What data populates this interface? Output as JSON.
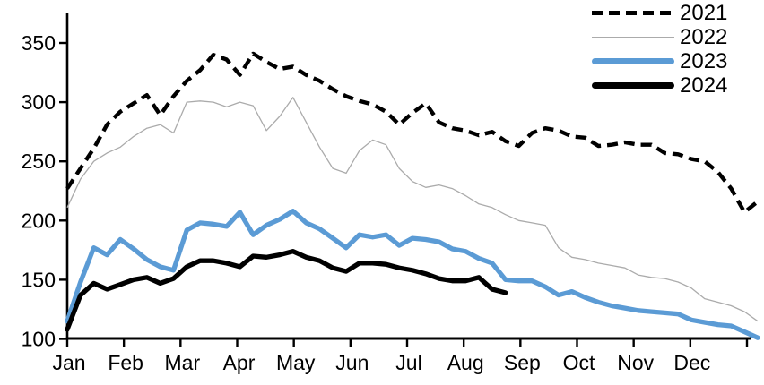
{
  "chart_data": {
    "type": "line",
    "title": "",
    "frequency": "weekly",
    "x_axis": {
      "month_labels": [
        "Jan",
        "Feb",
        "Mar",
        "Apr",
        "May",
        "Jun",
        "Jul",
        "Aug",
        "Sep",
        "Oct",
        "Nov",
        "Dec"
      ],
      "points_per_year": 53
    },
    "y_axis": {
      "min": 100,
      "max": 350,
      "ticks": [
        100,
        150,
        200,
        250,
        300,
        350
      ]
    },
    "legend": {
      "position": "top-right"
    },
    "series": [
      {
        "name": "2021",
        "color": "#000000",
        "line_style": "dashed",
        "values": [
          227,
          244,
          261,
          281,
          292,
          299,
          306,
          289,
          305,
          318,
          327,
          340,
          336,
          323,
          341,
          334,
          328,
          330,
          323,
          318,
          311,
          305,
          301,
          298,
          292,
          281,
          291,
          299,
          283,
          278,
          276,
          272,
          275,
          267,
          263,
          274,
          278,
          276,
          271,
          270,
          263,
          264,
          266,
          264,
          264,
          257,
          256,
          252,
          250,
          241,
          227,
          207,
          216
        ]
      },
      {
        "name": "2022",
        "color": "#ABABAB",
        "line_style": "thin",
        "values": [
          211,
          235,
          250,
          257,
          262,
          271,
          278,
          281,
          274,
          300,
          301,
          300,
          296,
          300,
          297,
          276,
          288,
          304,
          283,
          262,
          244,
          240,
          259,
          268,
          264,
          244,
          233,
          228,
          230,
          227,
          221,
          214,
          211,
          205,
          200,
          198,
          196,
          177,
          169,
          167,
          164,
          162,
          160,
          154,
          152,
          151,
          148,
          143,
          134,
          131,
          128,
          123,
          115
        ]
      },
      {
        "name": "2023",
        "color": "#5B9BD5",
        "line_style": "thick",
        "values": [
          115,
          148,
          177,
          171,
          184,
          176,
          167,
          161,
          158,
          192,
          198,
          197,
          195,
          207,
          188,
          196,
          201,
          208,
          198,
          193,
          185,
          177,
          188,
          186,
          188,
          179,
          185,
          184,
          182,
          176,
          174,
          168,
          164,
          150,
          149,
          149,
          144,
          137,
          140,
          135,
          131,
          128,
          126,
          124,
          123,
          122,
          121,
          116,
          114,
          112,
          111,
          106,
          101
        ]
      },
      {
        "name": "2024",
        "color": "#000000",
        "line_style": "thick",
        "values": [
          108,
          137,
          147,
          142,
          146,
          150,
          152,
          147,
          151,
          161,
          166,
          166,
          164,
          161,
          170,
          169,
          171,
          174,
          169,
          166,
          160,
          157,
          164,
          164,
          163,
          160,
          158,
          155,
          151,
          149,
          149,
          152,
          142,
          139
        ]
      }
    ]
  }
}
